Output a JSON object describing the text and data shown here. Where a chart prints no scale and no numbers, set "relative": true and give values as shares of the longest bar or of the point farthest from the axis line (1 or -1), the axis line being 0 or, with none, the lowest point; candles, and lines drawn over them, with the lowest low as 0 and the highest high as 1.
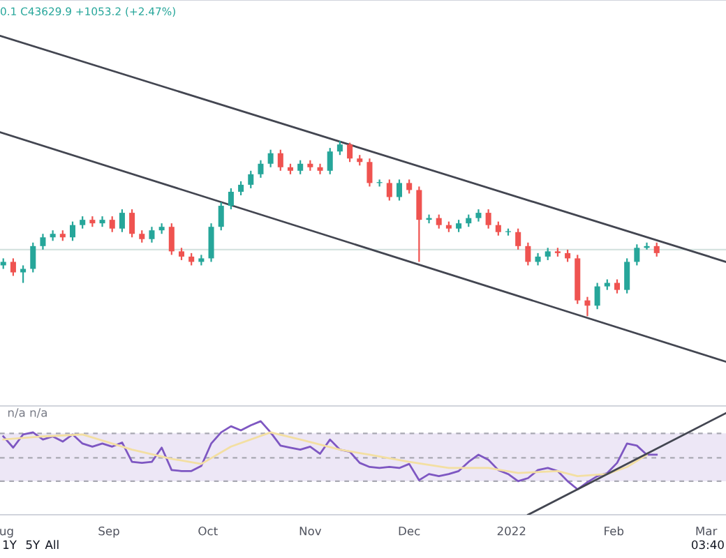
{
  "chart_data": [
    {
      "type": "candlestick",
      "relative": true,
      "x": [
        "2021-07-31",
        "2021-08-03",
        "2021-08-06",
        "2021-08-09",
        "2021-08-12",
        "2021-08-15",
        "2021-08-18",
        "2021-08-21",
        "2021-08-24",
        "2021-08-27",
        "2021-08-30",
        "2021-09-02",
        "2021-09-05",
        "2021-09-08",
        "2021-09-11",
        "2021-09-14",
        "2021-09-17",
        "2021-09-20",
        "2021-09-23",
        "2021-09-26",
        "2021-09-29",
        "2021-10-02",
        "2021-10-05",
        "2021-10-08",
        "2021-10-11",
        "2021-10-14",
        "2021-10-17",
        "2021-10-20",
        "2021-10-23",
        "2021-10-26",
        "2021-10-29",
        "2021-11-01",
        "2021-11-04",
        "2021-11-07",
        "2021-11-10",
        "2021-11-13",
        "2021-11-16",
        "2021-11-19",
        "2021-11-22",
        "2021-11-25",
        "2021-11-28",
        "2021-12-01",
        "2021-12-04",
        "2021-12-07",
        "2021-12-10",
        "2021-12-13",
        "2021-12-16",
        "2021-12-19",
        "2021-12-22",
        "2021-12-25",
        "2021-12-28",
        "2021-12-31",
        "2022-01-03",
        "2022-01-06",
        "2022-01-09",
        "2022-01-12",
        "2022-01-15",
        "2022-01-18",
        "2022-01-21",
        "2022-01-24",
        "2022-01-27",
        "2022-01-30",
        "2022-02-02",
        "2022-02-05",
        "2022-02-08",
        "2022-02-11",
        "2022-02-14"
      ],
      "ohlc": [
        [
          0.29,
          0.33,
          0.27,
          0.31
        ],
        [
          0.31,
          0.33,
          0.23,
          0.25
        ],
        [
          0.25,
          0.29,
          0.19,
          0.27
        ],
        [
          0.27,
          0.42,
          0.25,
          0.4
        ],
        [
          0.4,
          0.47,
          0.38,
          0.45
        ],
        [
          0.45,
          0.49,
          0.43,
          0.47
        ],
        [
          0.47,
          0.49,
          0.43,
          0.45
        ],
        [
          0.45,
          0.54,
          0.43,
          0.52
        ],
        [
          0.52,
          0.57,
          0.5,
          0.55
        ],
        [
          0.55,
          0.57,
          0.51,
          0.53
        ],
        [
          0.53,
          0.57,
          0.51,
          0.55
        ],
        [
          0.55,
          0.57,
          0.48,
          0.5
        ],
        [
          0.5,
          0.61,
          0.48,
          0.59
        ],
        [
          0.59,
          0.61,
          0.45,
          0.47
        ],
        [
          0.47,
          0.49,
          0.42,
          0.44
        ],
        [
          0.44,
          0.51,
          0.42,
          0.49
        ],
        [
          0.49,
          0.53,
          0.47,
          0.51
        ],
        [
          0.51,
          0.53,
          0.35,
          0.37
        ],
        [
          0.37,
          0.39,
          0.32,
          0.34
        ],
        [
          0.34,
          0.36,
          0.29,
          0.31
        ],
        [
          0.31,
          0.35,
          0.29,
          0.33
        ],
        [
          0.33,
          0.53,
          0.31,
          0.51
        ],
        [
          0.51,
          0.65,
          0.49,
          0.63
        ],
        [
          0.63,
          0.73,
          0.61,
          0.71
        ],
        [
          0.71,
          0.77,
          0.69,
          0.75
        ],
        [
          0.75,
          0.83,
          0.73,
          0.81
        ],
        [
          0.81,
          0.89,
          0.79,
          0.87
        ],
        [
          0.87,
          0.95,
          0.85,
          0.93
        ],
        [
          0.93,
          0.95,
          0.83,
          0.85
        ],
        [
          0.85,
          0.87,
          0.81,
          0.83
        ],
        [
          0.83,
          0.89,
          0.81,
          0.87
        ],
        [
          0.87,
          0.89,
          0.83,
          0.85
        ],
        [
          0.85,
          0.87,
          0.81,
          0.83
        ],
        [
          0.83,
          0.96,
          0.81,
          0.94
        ],
        [
          0.94,
          1.0,
          0.92,
          0.98
        ],
        [
          0.98,
          0.99,
          0.88,
          0.9
        ],
        [
          0.9,
          0.92,
          0.86,
          0.88
        ],
        [
          0.88,
          0.9,
          0.74,
          0.76
        ],
        [
          0.76,
          0.78,
          0.74,
          0.76
        ],
        [
          0.76,
          0.78,
          0.66,
          0.68
        ],
        [
          0.68,
          0.78,
          0.66,
          0.76
        ],
        [
          0.76,
          0.78,
          0.7,
          0.72
        ],
        [
          0.72,
          0.74,
          0.31,
          0.55
        ],
        [
          0.55,
          0.58,
          0.53,
          0.56
        ],
        [
          0.56,
          0.58,
          0.5,
          0.52
        ],
        [
          0.52,
          0.54,
          0.48,
          0.5
        ],
        [
          0.5,
          0.55,
          0.48,
          0.53
        ],
        [
          0.53,
          0.58,
          0.51,
          0.56
        ],
        [
          0.56,
          0.61,
          0.54,
          0.59
        ],
        [
          0.59,
          0.61,
          0.5,
          0.52
        ],
        [
          0.52,
          0.54,
          0.46,
          0.48
        ],
        [
          0.48,
          0.5,
          0.46,
          0.48
        ],
        [
          0.48,
          0.5,
          0.38,
          0.4
        ],
        [
          0.4,
          0.42,
          0.29,
          0.31
        ],
        [
          0.31,
          0.36,
          0.29,
          0.34
        ],
        [
          0.34,
          0.39,
          0.32,
          0.37
        ],
        [
          0.37,
          0.39,
          0.34,
          0.36
        ],
        [
          0.36,
          0.38,
          0.31,
          0.33
        ],
        [
          0.33,
          0.35,
          0.07,
          0.09
        ],
        [
          0.09,
          0.11,
          0.0,
          0.06
        ],
        [
          0.06,
          0.19,
          0.04,
          0.17
        ],
        [
          0.17,
          0.21,
          0.15,
          0.19
        ],
        [
          0.19,
          0.21,
          0.13,
          0.15
        ],
        [
          0.15,
          0.33,
          0.13,
          0.31
        ],
        [
          0.31,
          0.41,
          0.29,
          0.39
        ],
        [
          0.39,
          0.42,
          0.38,
          0.4
        ],
        [
          0.4,
          0.42,
          0.34,
          0.36
        ]
      ],
      "series": [
        {
          "type": "line",
          "x": [
            "2021-07-30",
            "2022-03-07"
          ],
          "values": [
            1.6,
            0.31
          ],
          "color": "#434651"
        },
        {
          "type": "line",
          "x": [
            "2021-07-30",
            "2022-03-07"
          ],
          "values": [
            1.05,
            -0.26
          ],
          "color": "#434651"
        }
      ],
      "ref_lines": [
        {
          "axis": "y",
          "value": 0.38,
          "color": "#d5e3e0"
        }
      ],
      "xlim": [
        "2021-07-30",
        "2022-03-07"
      ],
      "tick_labels": false,
      "annotations": [
        "0.1 C43629.9 +1053.2 (+2.47%)"
      ]
    },
    {
      "type": "line",
      "relative": true,
      "x": [
        "2021-07-31",
        "2021-08-03",
        "2021-08-06",
        "2021-08-09",
        "2021-08-12",
        "2021-08-15",
        "2021-08-18",
        "2021-08-21",
        "2021-08-24",
        "2021-08-27",
        "2021-08-30",
        "2021-09-02",
        "2021-09-05",
        "2021-09-08",
        "2021-09-11",
        "2021-09-14",
        "2021-09-17",
        "2021-09-20",
        "2021-09-23",
        "2021-09-26",
        "2021-09-29",
        "2021-10-02",
        "2021-10-05",
        "2021-10-08",
        "2021-10-11",
        "2021-10-14",
        "2021-10-17",
        "2021-10-20",
        "2021-10-23",
        "2021-10-26",
        "2021-10-29",
        "2021-11-01",
        "2021-11-04",
        "2021-11-07",
        "2021-11-10",
        "2021-11-13",
        "2021-11-16",
        "2021-11-19",
        "2021-11-22",
        "2021-11-25",
        "2021-11-28",
        "2021-12-01",
        "2021-12-04",
        "2021-12-07",
        "2021-12-10",
        "2021-12-13",
        "2021-12-16",
        "2021-12-19",
        "2021-12-22",
        "2021-12-25",
        "2021-12-28",
        "2021-12-31",
        "2022-01-03",
        "2022-01-06",
        "2022-01-09",
        "2022-01-12",
        "2022-01-15",
        "2022-01-18",
        "2022-01-21",
        "2022-01-24",
        "2022-01-27",
        "2022-01-30",
        "2022-02-02",
        "2022-02-05",
        "2022-02-08",
        "2022-02-11",
        "2022-02-14"
      ],
      "series": [
        {
          "color": "#7e57c2",
          "values": [
            0.77,
            0.66,
            0.79,
            0.81,
            0.74,
            0.77,
            0.72,
            0.79,
            0.7,
            0.67,
            0.7,
            0.67,
            0.71,
            0.52,
            0.51,
            0.52,
            0.66,
            0.44,
            0.43,
            0.43,
            0.48,
            0.7,
            0.81,
            0.87,
            0.83,
            0.88,
            0.92,
            0.81,
            0.68,
            0.66,
            0.64,
            0.67,
            0.6,
            0.74,
            0.64,
            0.62,
            0.51,
            0.47,
            0.46,
            0.47,
            0.46,
            0.5,
            0.34,
            0.4,
            0.38,
            0.4,
            0.43,
            0.52,
            0.59,
            0.54,
            0.44,
            0.4,
            0.33,
            0.36,
            0.44,
            0.46,
            0.43,
            0.33,
            0.25,
            0.32,
            0.38,
            0.41,
            0.51,
            0.7,
            0.68,
            0.59,
            0.59
          ]
        },
        {
          "color": "#f3dfa2",
          "x": [
            "2021-07-31",
            "2021-08-12",
            "2021-08-24",
            "2021-09-08",
            "2021-09-20",
            "2021-09-29",
            "2021-10-08",
            "2021-10-20",
            "2021-10-29",
            "2021-11-10",
            "2021-11-19",
            "2021-12-01",
            "2021-12-13",
            "2021-12-25",
            "2022-01-03",
            "2022-01-15",
            "2022-01-21",
            "2022-01-30",
            "2022-02-05",
            "2022-02-11"
          ],
          "values": [
            0.74,
            0.77,
            0.79,
            0.64,
            0.55,
            0.5,
            0.67,
            0.81,
            0.74,
            0.64,
            0.59,
            0.52,
            0.46,
            0.46,
            0.41,
            0.43,
            0.38,
            0.4,
            0.47,
            0.59
          ]
        },
        {
          "color": "#434651",
          "x": [
            "2022-01-06",
            "2022-03-07"
          ],
          "values": [
            0,
            1
          ]
        }
      ],
      "bands": [
        {
          "axis": "y",
          "from": 0.33,
          "to": 0.8,
          "color": "#ede7f6"
        }
      ],
      "ref_lines": [
        {
          "axis": "y",
          "value": 0.8,
          "color": "#a9a9b3",
          "line_style": "dashed"
        },
        {
          "axis": "y",
          "value": 0.56,
          "color": "#a9a9b3",
          "line_style": "dashed"
        },
        {
          "axis": "y",
          "value": 0.33,
          "color": "#a9a9b3",
          "line_style": "dashed"
        }
      ],
      "xlim": [
        "2021-07-30",
        "2022-03-07"
      ],
      "xticks": [
        {
          "value": "2021-08-01",
          "label": "ug"
        },
        {
          "value": "2021-09-01",
          "label": "Sep"
        },
        {
          "value": "2021-10-01",
          "label": "Oct"
        },
        {
          "value": "2021-11-01",
          "label": "Nov"
        },
        {
          "value": "2021-12-01",
          "label": "Dec"
        },
        {
          "value": "2022-01-01",
          "label": "2022"
        },
        {
          "value": "2022-02-01",
          "label": "Feb"
        },
        {
          "value": "2022-03-01",
          "label": "Mar"
        }
      ],
      "tick_labels": "x",
      "annotations": [
        "n/a n/a",
        "1Y",
        "5Y",
        "All",
        "03:40"
      ]
    }
  ]
}
